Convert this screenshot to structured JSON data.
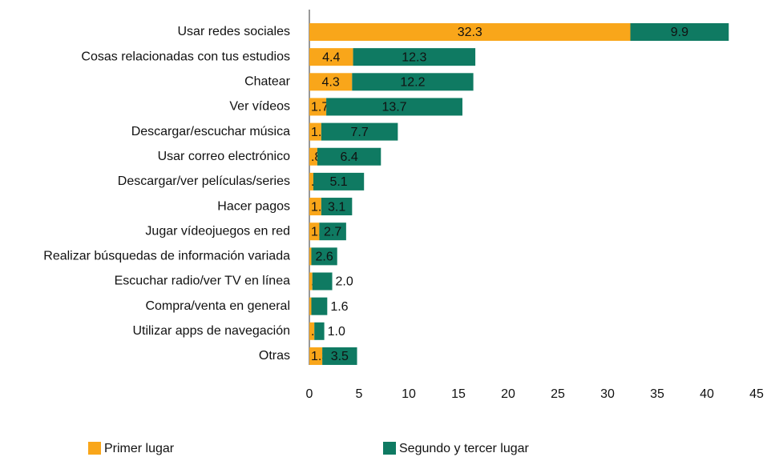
{
  "chart_data": {
    "type": "stacked_barh",
    "categories": [
      "Usar redes sociales",
      "Cosas relacionadas con tus estudios",
      "Chatear",
      "Ver vídeos",
      "Descargar/escuchar música",
      "Usar correo electrónico",
      "Descargar/ver películas/series",
      "Hacer pagos",
      "Jugar vídeojuegos en red",
      "Realizar búsquedas de información variada",
      "Escuchar radio/ver TV en línea",
      "Compra/venta en general",
      "Utilizar apps de navegación",
      "Otras"
    ],
    "series": [
      {
        "name": "Primer lugar",
        "color": "#f9a61a",
        "values": [
          32.3,
          4.4,
          4.3,
          1.7,
          1.2,
          0.8,
          0.4,
          1.2,
          1.0,
          0.2,
          0.3,
          0.2,
          0.5,
          1.3
        ],
        "value_labels": [
          "32.3",
          "4.4",
          "4.3",
          "1.7",
          "1.2",
          ".8",
          ".4",
          "1.2",
          "1.0",
          ".2",
          ".3",
          ".2",
          ".5",
          "1.3"
        ]
      },
      {
        "name": "Segundo y tercer lugar",
        "color": "#0f7a62",
        "values": [
          9.9,
          12.3,
          12.2,
          13.7,
          7.7,
          6.4,
          5.1,
          3.1,
          2.7,
          2.6,
          2.0,
          1.6,
          1.0,
          3.5
        ],
        "value_labels": [
          "9.9",
          "12.3",
          "12.2",
          "13.7",
          "7.7",
          "6.4",
          "5.1",
          "3.1",
          "2.7",
          "2.6",
          "2.0",
          "1.6",
          "1.0",
          "3.5"
        ]
      }
    ],
    "xlim": [
      0,
      45
    ],
    "xticks": [
      0,
      5,
      10,
      15,
      20,
      25,
      30,
      35,
      40,
      45
    ],
    "grid": false,
    "legend": "bottom"
  }
}
